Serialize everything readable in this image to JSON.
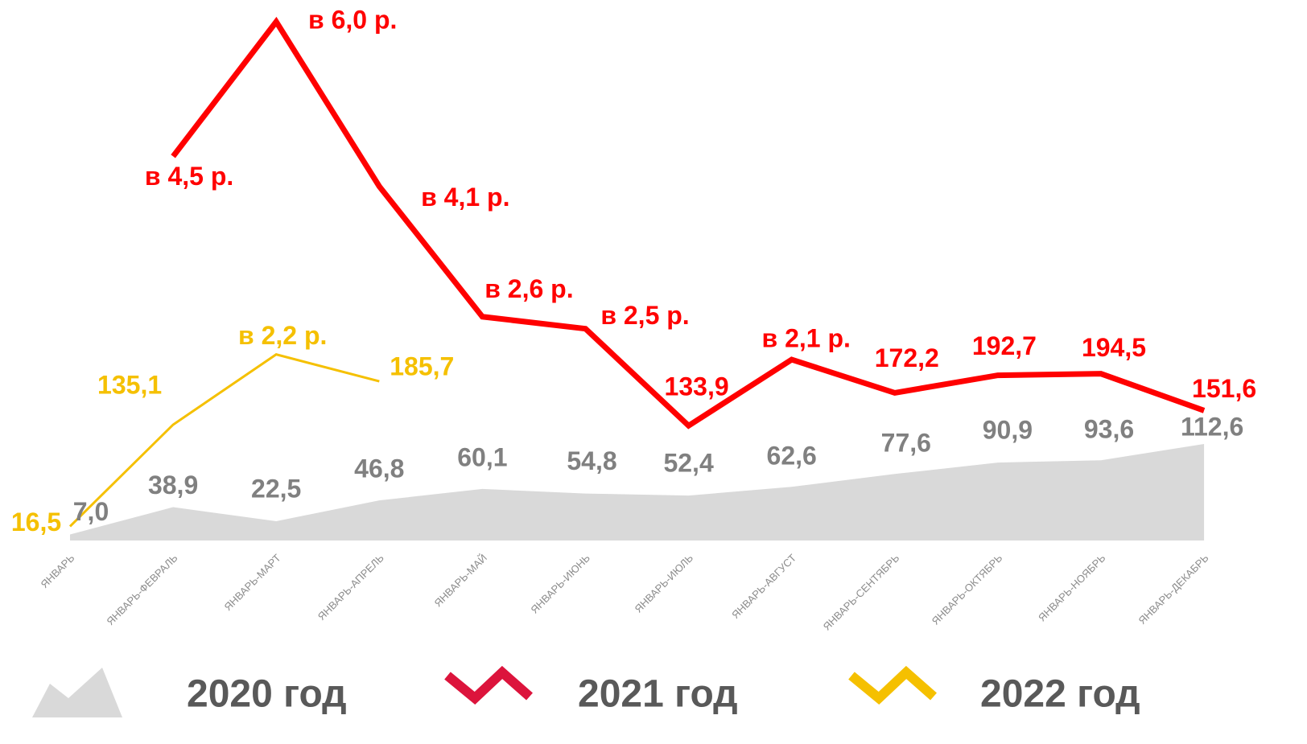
{
  "chart_data": {
    "type": "line",
    "categories": [
      "ЯНВАРЬ",
      "ЯНВАРЬ-ФЕВРАЛЬ",
      "ЯНВАРЬ-МАРТ",
      "ЯНВАРЬ-АПРЕЛЬ",
      "ЯНВАРЬ-МАЙ",
      "ЯНВАРЬ-ИЮНЬ",
      "ЯНВАРЬ-ИЮЛЬ",
      "ЯНВАРЬ-АВГУСТ",
      "ЯНВАРЬ-СЕНТЯБРЬ",
      "ЯНВАРЬ-ОКТЯБРЬ",
      "ЯНВАРЬ-НОЯБРЬ",
      "ЯНВАРЬ-ДЕКАБРЬ"
    ],
    "ylim": [
      0,
      606
    ],
    "series": [
      {
        "name": "2020 год",
        "kind": "area",
        "color": "#d9d9d9",
        "label_color": "#808080",
        "values": [
          7.0,
          38.9,
          22.5,
          46.8,
          60.1,
          54.8,
          52.4,
          62.6,
          77.6,
          90.9,
          93.6,
          112.6
        ],
        "value_labels": [
          "7,0",
          "38,9",
          "22,5",
          "46,8",
          "60,1",
          "54,8",
          "52,4",
          "62,6",
          "77,6",
          "90,9",
          "93,6",
          "112,6"
        ]
      },
      {
        "name": "2021 год",
        "kind": "line",
        "color": "#ff0000",
        "label_color": "#ff0000",
        "values": [
          null,
          448,
          605,
          413,
          261,
          247,
          133.9,
          211,
          172.2,
          192.7,
          194.5,
          151.6
        ],
        "value_labels": [
          null,
          null,
          null,
          null,
          null,
          null,
          "133,9",
          null,
          "172,2",
          "192,7",
          "194,5",
          "151,6"
        ],
        "ratio_labels": [
          null,
          "в 4,5 р.",
          "в 6,0 р.",
          "в 4,1 р.",
          "в 2,6 р.",
          "в 2,5 р.",
          null,
          "в 2,1 р.",
          null,
          null,
          null,
          null
        ]
      },
      {
        "name": "2022 год",
        "kind": "line",
        "color": "#f5c000",
        "label_color": "#f5c000",
        "values": [
          16.5,
          135.1,
          217,
          185.7,
          null,
          null,
          null,
          null,
          null,
          null,
          null,
          null
        ],
        "value_labels": [
          "16,5",
          "135,1",
          null,
          "185,7",
          null,
          null,
          null,
          null,
          null,
          null,
          null,
          null
        ],
        "ratio_labels": [
          null,
          null,
          "в 2,2 р.",
          null,
          null,
          null,
          null,
          null,
          null,
          null,
          null,
          null
        ]
      }
    ]
  }
}
